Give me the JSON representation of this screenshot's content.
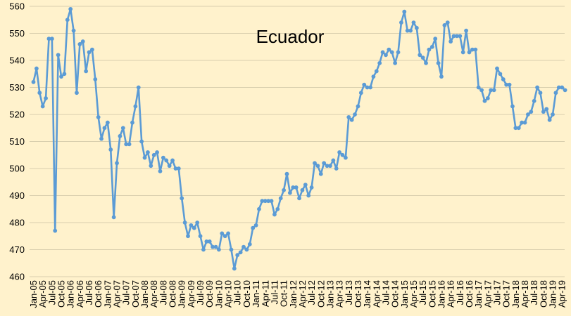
{
  "chart_data": {
    "type": "line",
    "title": "Ecuador",
    "xlabel": "",
    "ylabel": "",
    "ylim": [
      460,
      560
    ],
    "yticks": [
      460,
      470,
      480,
      490,
      500,
      510,
      520,
      530,
      540,
      550,
      560
    ],
    "grid": true,
    "legend": "none",
    "x_tick_labels": [
      "Jan-05",
      "Apr-05",
      "Jul-05",
      "Oct-05",
      "Jan-06",
      "Apr-06",
      "Jul-06",
      "Oct-06",
      "Jan-07",
      "Apr-07",
      "Jul-07",
      "Oct-07",
      "Jan-08",
      "Apr-08",
      "Jul-08",
      "Oct-08",
      "Jan-09",
      "Apr-09",
      "Jul-09",
      "Oct-09",
      "Jan-10",
      "Apr-10",
      "Jul-10",
      "Oct-10",
      "Jan-11",
      "Apr-11",
      "Jul-11",
      "Oct-11",
      "Jan-12",
      "Apr-12",
      "Jul-12",
      "Oct-12",
      "Jan-13",
      "Apr-13",
      "Jul-13",
      "Oct-13",
      "Jan-14",
      "Apr-14",
      "Jul-14",
      "Oct-14",
      "Jan-15",
      "Apr-15",
      "Jul-15",
      "Oct-15",
      "Jan-16",
      "Apr-16",
      "Jul-16",
      "Oct-16",
      "Jan-17",
      "Apr-17",
      "Jul-17",
      "Oct-17",
      "Jan-18",
      "Apr-18",
      "Jul-18",
      "Oct-18",
      "Jan-19",
      "Apr-19"
    ],
    "series": [
      {
        "color": "#5B9BD5",
        "x_start": "Jan-05",
        "x_step": "month",
        "values": [
          532,
          537,
          528,
          523,
          526,
          548,
          548,
          477,
          542,
          534,
          535,
          555,
          559,
          551,
          528,
          546,
          547,
          536,
          543,
          544,
          533,
          519,
          511,
          515,
          517,
          507,
          482,
          502,
          512,
          515,
          509,
          509,
          517,
          523,
          530,
          510,
          504,
          506,
          501,
          505,
          506,
          499,
          504,
          503,
          501,
          503,
          500,
          500,
          489,
          480,
          475,
          479,
          478,
          480,
          475,
          470,
          473,
          473,
          471,
          471,
          470,
          476,
          475,
          476,
          470,
          463,
          468,
          469,
          471,
          470,
          472,
          478,
          479,
          485,
          488,
          488,
          488,
          488,
          483,
          485,
          489,
          492,
          498,
          491,
          493,
          493,
          489,
          492,
          494,
          490,
          493,
          502,
          501,
          498,
          502,
          501,
          501,
          503,
          500,
          506,
          505,
          504,
          519,
          518,
          520,
          523,
          528,
          531,
          530,
          530,
          534,
          536,
          539,
          543,
          542,
          544,
          543,
          539,
          543,
          554,
          558,
          551,
          551,
          554,
          552,
          542,
          541,
          539,
          544,
          545,
          548,
          539,
          534,
          553,
          554,
          547,
          549,
          549,
          549,
          543,
          551,
          543,
          544,
          544,
          530,
          529,
          525,
          526,
          529,
          529,
          537,
          535,
          533,
          531,
          531,
          523,
          515,
          515,
          517,
          517,
          520,
          521,
          525,
          530,
          528,
          521,
          522,
          518,
          520,
          528,
          530,
          530,
          529
        ]
      }
    ]
  }
}
